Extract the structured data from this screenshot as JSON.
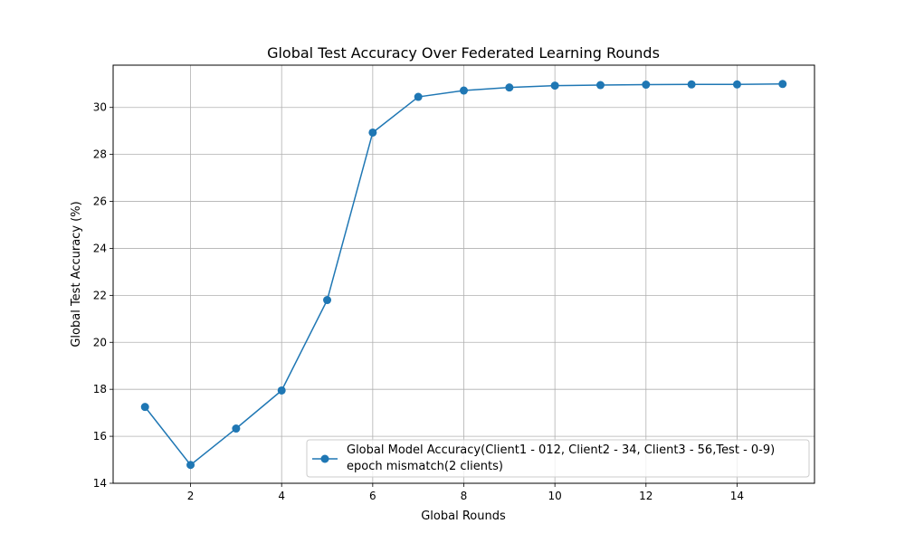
{
  "chart_data": {
    "type": "line",
    "title": "Global Test Accuracy Over Federated Learning Rounds",
    "xlabel": "Global Rounds",
    "ylabel": "Global Test Accuracy (%)",
    "xlim": [
      0.3,
      15.7
    ],
    "ylim": [
      14.0,
      31.8
    ],
    "x_ticks": [
      2,
      4,
      6,
      8,
      10,
      12,
      14
    ],
    "y_ticks": [
      14,
      16,
      18,
      20,
      22,
      24,
      26,
      28,
      30
    ],
    "grid": true,
    "legend_position": "lower-right",
    "series": [
      {
        "name": "Global Model Accuracy(Client1 - 012, Client2 - 34, Client3 - 56,Test - 0-9)\nepoch mismatch(2 clients)",
        "name_lines": [
          "Global Model Accuracy(Client1 - 012, Client2 - 34, Client3 - 56,Test - 0-9)",
          "epoch mismatch(2 clients)"
        ],
        "color": "#1f77b4",
        "marker": "circle",
        "x": [
          1,
          2,
          3,
          4,
          5,
          6,
          7,
          8,
          9,
          10,
          11,
          12,
          13,
          14,
          15
        ],
        "values": [
          17.25,
          14.78,
          16.33,
          17.95,
          21.8,
          28.93,
          30.45,
          30.72,
          30.85,
          30.93,
          30.95,
          30.97,
          30.98,
          30.98,
          31.0
        ]
      }
    ]
  }
}
